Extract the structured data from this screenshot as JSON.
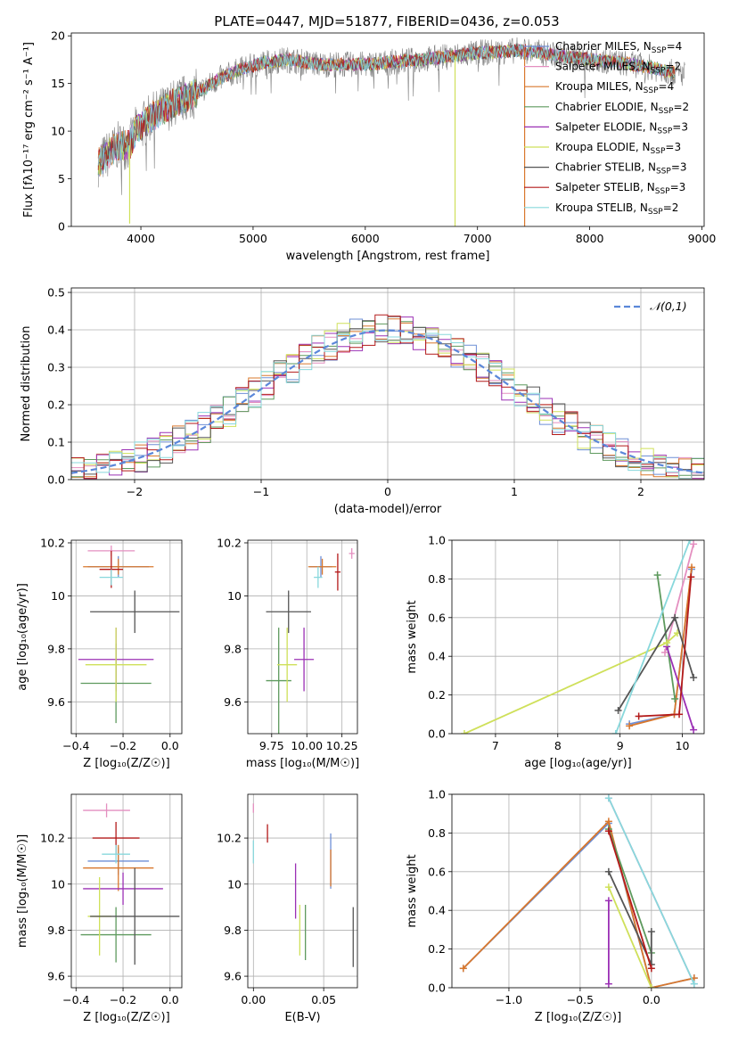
{
  "figure_title": "PLATE=0447, MJD=51877, FIBERID=0436, z=0.053",
  "colors": {
    "Chabrier MILES": "#6e8fd6",
    "Salpeter MILES": "#e48fc0",
    "Kroupa MILES": "#d9782d",
    "Chabrier ELODIE": "#5e9a5e",
    "Salpeter ELODIE": "#9b30b5",
    "Kroupa ELODIE": "#cfe05a",
    "Chabrier STELIB": "#555555",
    "Salpeter STELIB": "#b31a1a",
    "Kroupa STELIB": "#88d8dc",
    "normal_curve": "#5b87d9",
    "observed_spectrum": "#7f7f7f"
  },
  "chart_data": [
    {
      "id": "spectrum",
      "type": "line",
      "xlabel": "wavelength [Angstrom, rest frame]",
      "ylabel": "Flux [f_λ10^-17 erg cm^-2 s^-1 A^-1]",
      "xlim": [
        3380,
        9020
      ],
      "ylim": [
        0,
        20.3
      ],
      "xticks": [
        4000,
        5000,
        6000,
        7000,
        8000,
        9000
      ],
      "yticks": [
        0,
        5,
        10,
        15,
        20
      ],
      "grid": false,
      "legend_position": "upper right",
      "legend": [
        {
          "name": "Chabrier MILES",
          "nssp": "4"
        },
        {
          "name": "Salpeter MILES",
          "nssp": "2"
        },
        {
          "name": "Kroupa MILES",
          "nssp": "4"
        },
        {
          "name": "Chabrier ELODIE",
          "nssp": "2"
        },
        {
          "name": "Salpeter ELODIE",
          "nssp": "3"
        },
        {
          "name": "Kroupa ELODIE",
          "nssp": "3"
        },
        {
          "name": "Chabrier STELIB",
          "nssp": "3"
        },
        {
          "name": "Salpeter STELIB",
          "nssp": "3"
        },
        {
          "name": "Kroupa STELIB",
          "nssp": "2"
        }
      ],
      "continuum": {
        "x": [
          3600,
          3800,
          3900,
          3950,
          4100,
          4300,
          4500,
          4700,
          4900,
          5100,
          5300,
          5600,
          6000,
          6500,
          7000,
          7400,
          7800,
          8200,
          8500,
          8800
        ],
        "y": [
          6.5,
          8.5,
          8.5,
          10.0,
          11.5,
          13.0,
          14.0,
          15.5,
          16.5,
          17.2,
          17.5,
          17.0,
          17.0,
          17.5,
          18.2,
          18.5,
          17.8,
          17.3,
          16.8,
          16.0
        ]
      },
      "observed_range": [
        3620,
        8850
      ],
      "model_range": [
        3620,
        8760
      ],
      "model_drops": [
        {
          "x": 3900,
          "y": 0.3
        },
        {
          "x": 6800,
          "y": 0.0
        },
        {
          "x": 7420,
          "y": 0.0
        }
      ]
    },
    {
      "id": "residuals",
      "type": "area",
      "xlabel": "(data-model)/error",
      "ylabel": "Normed distribution",
      "xlim": [
        -2.5,
        2.5
      ],
      "ylim": [
        0,
        0.512
      ],
      "xticks": [
        -2,
        -1,
        0,
        1,
        2
      ],
      "yticks": [
        0.0,
        0.1,
        0.2,
        0.3,
        0.4,
        0.5
      ],
      "grid": true,
      "legend_position": "upper right",
      "legend_label": "𝒩(0,1)",
      "bin_width": 0.1
    },
    {
      "id": "age-Z",
      "type": "scatter",
      "xlabel": "Z [log₁₀(Z/Z☉)]",
      "ylabel": "age  [log₁₀(age/yr)]",
      "xlim": [
        -0.42,
        0.05
      ],
      "ylim": [
        9.48,
        10.21
      ],
      "xticks": [
        -0.4,
        -0.2,
        0.0
      ],
      "yticks": [
        9.6,
        9.8,
        10.0,
        10.2
      ],
      "grid": true,
      "points": [
        {
          "series": "Chabrier MILES",
          "x": -0.22,
          "xerr": 0.13,
          "y": 10.11,
          "yerr": 0.04
        },
        {
          "series": "Salpeter MILES",
          "x": -0.25,
          "xerr": 0.1,
          "y": 10.17,
          "yerr": 0.02
        },
        {
          "series": "Kroupa MILES",
          "x": -0.22,
          "xerr": 0.15,
          "y": 10.11,
          "yerr": 0.03
        },
        {
          "series": "Chabrier ELODIE",
          "x": -0.23,
          "xerr": 0.15,
          "y": 9.67,
          "yerr": 0.15
        },
        {
          "series": "Salpeter ELODIE",
          "x": -0.23,
          "xerr": 0.16,
          "y": 9.76,
          "yerr": 0.12
        },
        {
          "series": "Kroupa ELODIE",
          "x": -0.23,
          "xerr": 0.13,
          "y": 9.74,
          "yerr": 0.14
        },
        {
          "series": "Chabrier STELIB",
          "x": -0.15,
          "xerr": 0.19,
          "y": 9.94,
          "yerr": 0.08
        },
        {
          "series": "Salpeter STELIB",
          "x": -0.25,
          "xerr": 0.05,
          "y": 10.1,
          "yerr": 0.07
        },
        {
          "series": "Kroupa STELIB",
          "x": -0.25,
          "xerr": 0.05,
          "y": 10.07,
          "yerr": 0.03
        }
      ]
    },
    {
      "id": "age-mass",
      "type": "scatter",
      "xlabel": "mass [log₁₀(M/M☉)]",
      "ylabel": "",
      "xlim": [
        9.58,
        10.36
      ],
      "ylim": [
        9.48,
        10.21
      ],
      "xticks": [
        9.75,
        10.0,
        10.25
      ],
      "xticklabels": [
        "9.75",
        "10.00",
        "10.25"
      ],
      "yticks": [
        9.6,
        9.8,
        10.0,
        10.2
      ],
      "grid": true,
      "points": [
        {
          "series": "Chabrier MILES",
          "x": 10.1,
          "xerr": 0.08,
          "y": 10.11,
          "yerr": 0.04
        },
        {
          "series": "Salpeter MILES",
          "x": 10.32,
          "xerr": 0.02,
          "y": 10.16,
          "yerr": 0.02
        },
        {
          "series": "Kroupa MILES",
          "x": 10.11,
          "xerr": 0.1,
          "y": 10.11,
          "yerr": 0.03
        },
        {
          "series": "Chabrier ELODIE",
          "x": 9.8,
          "xerr": 0.09,
          "y": 9.68,
          "yerr": 0.2
        },
        {
          "series": "Salpeter ELODIE",
          "x": 9.98,
          "xerr": 0.07,
          "y": 9.76,
          "yerr": 0.12
        },
        {
          "series": "Kroupa ELODIE",
          "x": 9.86,
          "xerr": 0.07,
          "y": 9.74,
          "yerr": 0.14
        },
        {
          "series": "Chabrier STELIB",
          "x": 9.87,
          "xerr": 0.16,
          "y": 9.94,
          "yerr": 0.08
        },
        {
          "series": "Salpeter STELIB",
          "x": 10.22,
          "xerr": 0.02,
          "y": 10.09,
          "yerr": 0.07
        },
        {
          "series": "Kroupa STELIB",
          "x": 10.08,
          "xerr": 0.03,
          "y": 10.07,
          "yerr": 0.04
        }
      ]
    },
    {
      "id": "mass-Z",
      "type": "scatter",
      "xlabel": "Z [log₁₀(Z/Z☉)]",
      "ylabel": "mass [log₁₀(M/M☉)]",
      "xlim": [
        -0.42,
        0.05
      ],
      "ylim": [
        9.55,
        10.39
      ],
      "xticks": [
        -0.4,
        -0.2,
        0.0
      ],
      "yticks": [
        9.6,
        9.8,
        10.0,
        10.2
      ],
      "grid": true,
      "points": [
        {
          "series": "Chabrier MILES",
          "x": -0.22,
          "xerr": 0.13,
          "y": 10.1,
          "yerr": 0.06
        },
        {
          "series": "Salpeter MILES",
          "x": -0.27,
          "xerr": 0.1,
          "y": 10.32,
          "yerr": 0.03
        },
        {
          "series": "Kroupa MILES",
          "x": -0.22,
          "xerr": 0.15,
          "y": 10.07,
          "yerr": 0.1
        },
        {
          "series": "Chabrier ELODIE",
          "x": -0.23,
          "xerr": 0.15,
          "y": 9.78,
          "yerr": 0.12
        },
        {
          "series": "Salpeter ELODIE",
          "x": -0.2,
          "xerr": 0.17,
          "y": 9.98,
          "yerr": 0.07
        },
        {
          "series": "Kroupa ELODIE",
          "x": -0.3,
          "xerr": 0.05,
          "y": 9.86,
          "yerr": 0.17
        },
        {
          "series": "Chabrier STELIB",
          "x": -0.15,
          "xerr": 0.19,
          "y": 9.86,
          "yerr": 0.21
        },
        {
          "series": "Salpeter STELIB",
          "x": -0.23,
          "xerr": 0.1,
          "y": 10.2,
          "yerr": 0.07
        },
        {
          "series": "Kroupa STELIB",
          "x": -0.23,
          "xerr": 0.06,
          "y": 10.13,
          "yerr": 0.04
        }
      ]
    },
    {
      "id": "mass-EBV",
      "type": "scatter",
      "xlabel": "E(B-V)",
      "ylabel": "",
      "xlim": [
        -0.004,
        0.074
      ],
      "ylim": [
        9.55,
        10.39
      ],
      "xticks": [
        0.0,
        0.05
      ],
      "xticklabels": [
        "0.00",
        "0.05"
      ],
      "yticks": [
        9.6,
        9.8,
        10.0,
        10.2
      ],
      "grid": true,
      "points": [
        {
          "series": "Chabrier MILES",
          "x": 0.055,
          "y": 10.1,
          "yerr": 0.12
        },
        {
          "series": "Salpeter MILES",
          "x": 0.0,
          "y": 10.33,
          "yerr": 0.02
        },
        {
          "series": "Kroupa MILES",
          "x": 0.055,
          "y": 10.07,
          "yerr": 0.08
        },
        {
          "series": "Chabrier ELODIE",
          "x": 0.037,
          "y": 9.79,
          "yerr": 0.12
        },
        {
          "series": "Salpeter ELODIE",
          "x": 0.03,
          "y": 9.97,
          "yerr": 0.12
        },
        {
          "series": "Kroupa ELODIE",
          "x": 0.033,
          "y": 9.8,
          "yerr": 0.11
        },
        {
          "series": "Chabrier STELIB",
          "x": 0.071,
          "y": 9.77,
          "yerr": 0.13
        },
        {
          "series": "Salpeter STELIB",
          "x": 0.01,
          "y": 10.22,
          "yerr": 0.04
        },
        {
          "series": "Kroupa STELIB",
          "x": 0.0,
          "y": 10.14,
          "yerr": 0.05
        }
      ]
    },
    {
      "id": "mw-age",
      "type": "line",
      "xlabel": "age  [log₁₀(age/yr)]",
      "ylabel": "mass weight",
      "xlim": [
        6.3,
        10.35
      ],
      "ylim": [
        0,
        1.0
      ],
      "xticks": [
        7,
        8,
        9,
        10
      ],
      "yticks": [
        0.0,
        0.2,
        0.4,
        0.6,
        0.8,
        1.0
      ],
      "grid": true,
      "series": [
        {
          "name": "Chabrier MILES",
          "x": [
            9.15,
            9.87,
            10.15
          ],
          "y": [
            0.05,
            0.1,
            0.85
          ]
        },
        {
          "name": "Salpeter MILES",
          "x": [
            9.72,
            10.18
          ],
          "y": [
            0.42,
            0.98
          ]
        },
        {
          "name": "Kroupa MILES",
          "x": [
            9.15,
            9.87,
            10.15
          ],
          "y": [
            0.04,
            0.1,
            0.86
          ]
        },
        {
          "name": "Chabrier ELODIE",
          "x": [
            9.6,
            9.88
          ],
          "y": [
            0.82,
            0.18
          ]
        },
        {
          "name": "Salpeter ELODIE",
          "x": [
            9.75,
            10.18
          ],
          "y": [
            0.45,
            0.02
          ]
        },
        {
          "name": "Kroupa ELODIE",
          "x": [
            6.5,
            9.75,
            9.92
          ],
          "y": [
            0.0,
            0.47,
            0.52
          ]
        },
        {
          "name": "Chabrier STELIB",
          "x": [
            8.97,
            9.88,
            10.18
          ],
          "y": [
            0.12,
            0.6,
            0.29
          ]
        },
        {
          "name": "Salpeter STELIB",
          "x": [
            9.3,
            9.95,
            10.14
          ],
          "y": [
            0.09,
            0.1,
            0.81
          ]
        },
        {
          "name": "Kroupa STELIB",
          "x": [
            8.93,
            10.12
          ],
          "y": [
            0.0,
            1.0
          ]
        }
      ]
    },
    {
      "id": "mw-Z",
      "type": "line",
      "xlabel": "Z [log₁₀(Z/Z☉)]",
      "ylabel": "mass weight",
      "xlim": [
        -1.4,
        0.37
      ],
      "ylim": [
        0,
        1.0
      ],
      "xticks": [
        -1.0,
        -0.5,
        0.0
      ],
      "yticks": [
        0.0,
        0.2,
        0.4,
        0.6,
        0.8,
        1.0
      ],
      "grid": true,
      "series": [
        {
          "name": "Chabrier MILES",
          "x": [
            -1.32,
            -0.3,
            0.0,
            0.3
          ],
          "y": [
            0.1,
            0.85,
            0.0,
            0.05
          ]
        },
        {
          "name": "Salpeter MILES",
          "x": [
            -0.3,
            0.3
          ],
          "y": [
            0.98,
            0.02
          ]
        },
        {
          "name": "Kroupa MILES",
          "x": [
            -1.32,
            -0.3,
            0.0,
            0.3
          ],
          "y": [
            0.1,
            0.86,
            0.0,
            0.05
          ]
        },
        {
          "name": "Chabrier ELODIE",
          "x": [
            -0.3,
            0.0
          ],
          "y": [
            0.82,
            0.18
          ]
        },
        {
          "name": "Salpeter ELODIE",
          "x": [
            -0.3,
            -0.3
          ],
          "y": [
            0.02,
            0.45
          ]
        },
        {
          "name": "Kroupa ELODIE",
          "x": [
            -0.3,
            0.0
          ],
          "y": [
            0.52,
            0.0
          ]
        },
        {
          "name": "Chabrier STELIB",
          "x": [
            -0.3,
            0.0,
            0.0
          ],
          "y": [
            0.6,
            0.12,
            0.29
          ]
        },
        {
          "name": "Salpeter STELIB",
          "x": [
            -0.3,
            0.0
          ],
          "y": [
            0.81,
            0.1
          ]
        },
        {
          "name": "Kroupa STELIB",
          "x": [
            -0.3,
            0.3
          ],
          "y": [
            0.98,
            0.02
          ]
        }
      ]
    }
  ]
}
